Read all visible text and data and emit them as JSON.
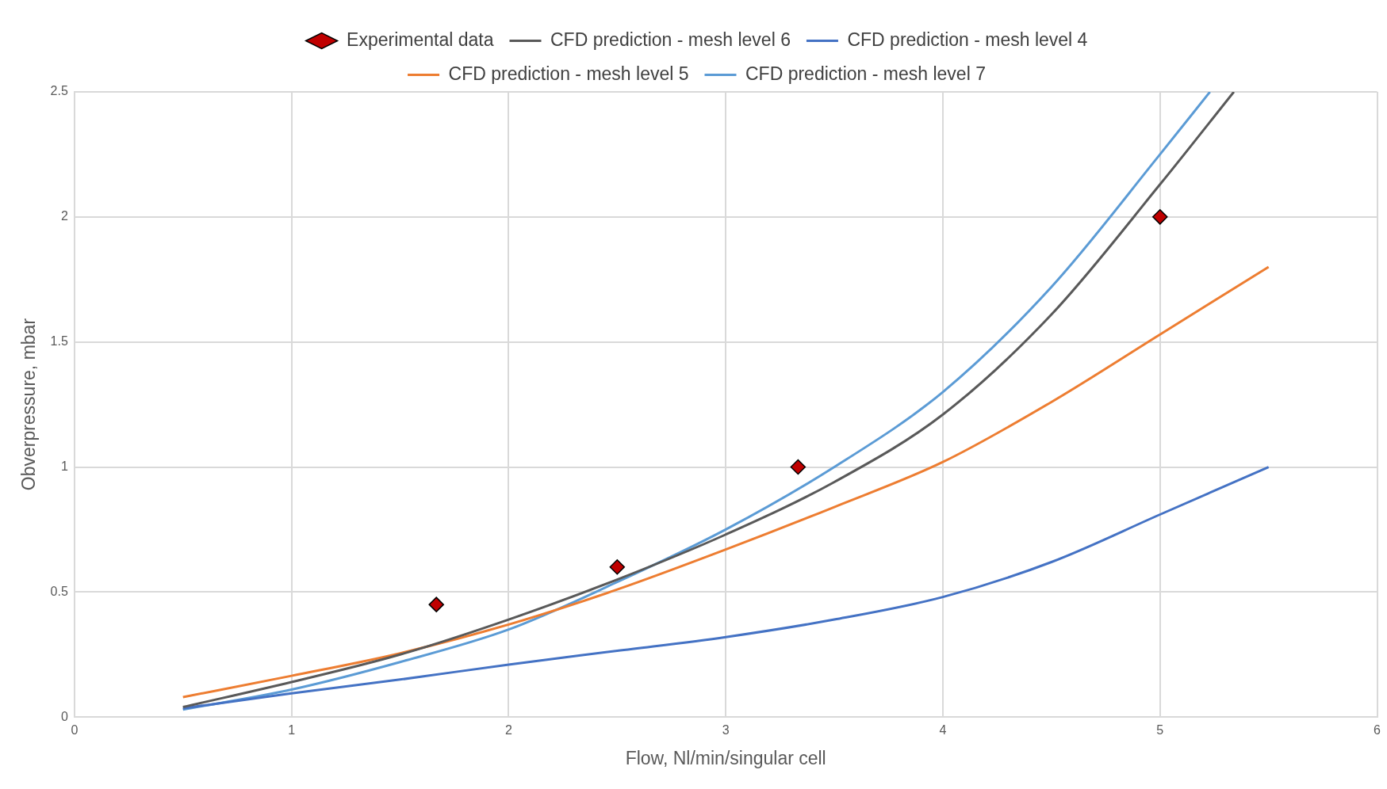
{
  "chart_data": {
    "type": "line",
    "xlabel": "Flow, Nl/min/singular cell",
    "ylabel": "Obverpressure, mbar",
    "xlim": [
      0,
      6
    ],
    "xticks": [
      0,
      1,
      2,
      3,
      4,
      5,
      6
    ],
    "ylim": [
      0,
      2.5
    ],
    "yticks": [
      0,
      0.5,
      1,
      1.5,
      2,
      2.5
    ],
    "grid": true,
    "legend": "top",
    "line_style": "solid",
    "series": [
      {
        "name": "Experimental data",
        "type": "scatter",
        "marker": "diamond",
        "color": "#c00000",
        "x": [
          1.667,
          2.5,
          3.333,
          5
        ],
        "values": [
          0.45,
          0.6,
          1.0,
          2.0
        ]
      },
      {
        "name": "CFD prediction - mesh level 6",
        "type": "line",
        "marker": "none",
        "color": "#595959",
        "x": [
          0.5,
          1,
          1.5,
          2,
          2.5,
          3,
          3.5,
          4,
          4.5,
          5,
          5.34
        ],
        "values": [
          0.04,
          0.14,
          0.25,
          0.39,
          0.55,
          0.73,
          0.94,
          1.21,
          1.61,
          2.13,
          2.5
        ]
      },
      {
        "name": "CFD prediction - mesh level 4",
        "type": "line",
        "marker": "none",
        "color": "#4472c4",
        "x": [
          0.5,
          1,
          1.5,
          2,
          2.5,
          3,
          3.5,
          4,
          4.5,
          5,
          5.5
        ],
        "values": [
          0.035,
          0.095,
          0.15,
          0.21,
          0.265,
          0.32,
          0.39,
          0.48,
          0.62,
          0.81,
          1.0
        ]
      },
      {
        "name": "CFD prediction - mesh level 5",
        "type": "line",
        "marker": "none",
        "color": "#ed7d31",
        "x": [
          0.5,
          1,
          1.5,
          2,
          2.5,
          3,
          3.5,
          4,
          4.5,
          5,
          5.5
        ],
        "values": [
          0.08,
          0.165,
          0.255,
          0.37,
          0.51,
          0.67,
          0.84,
          1.02,
          1.26,
          1.53,
          1.8
        ]
      },
      {
        "name": "CFD prediction - mesh level 7",
        "type": "line",
        "marker": "none",
        "color": "#5b9bd5",
        "x": [
          0.5,
          1,
          1.5,
          2,
          2.5,
          3,
          3.5,
          4,
          4.5,
          5,
          5.23
        ],
        "values": [
          0.03,
          0.11,
          0.22,
          0.35,
          0.54,
          0.75,
          1.0,
          1.3,
          1.72,
          2.25,
          2.5
        ]
      }
    ]
  }
}
